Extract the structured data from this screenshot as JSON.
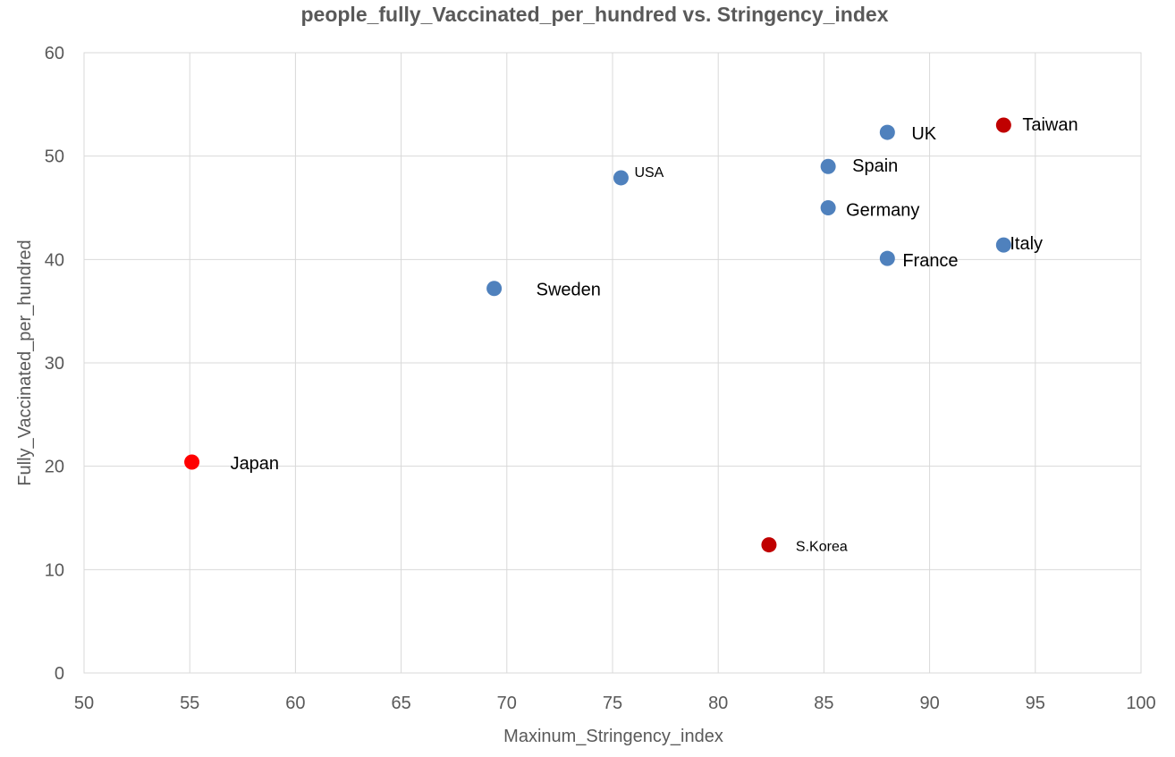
{
  "chart_data": {
    "type": "scatter",
    "title": "people_fully_Vaccinated_per_hundred vs. Stringency_index",
    "xlabel": "Maxinum_Stringency_index",
    "ylabel": "Fully_Vaccinated_per_hundred",
    "xlim": [
      50,
      100
    ],
    "ylim": [
      0,
      60
    ],
    "xticks": [
      "50",
      "55",
      "60",
      "65",
      "70",
      "75",
      "80",
      "85",
      "90",
      "95",
      "100"
    ],
    "yticks": [
      "0",
      "10",
      "20",
      "30",
      "40",
      "50",
      "60"
    ],
    "grid": true,
    "legend": "none",
    "colors": {
      "blue": "#4f81bd",
      "red": "#ff0000",
      "darkred": "#c00000"
    },
    "points": [
      {
        "label": "UK",
        "x": 88.0,
        "y": 52.3,
        "color": "#4f81bd",
        "label_size": "large"
      },
      {
        "label": "Taiwan",
        "x": 93.5,
        "y": 53.0,
        "color": "#c00000",
        "label_size": "large"
      },
      {
        "label": "USA",
        "x": 75.4,
        "y": 47.9,
        "color": "#4f81bd",
        "label_size": "small"
      },
      {
        "label": "Spain",
        "x": 85.2,
        "y": 49.0,
        "color": "#4f81bd",
        "label_size": "large"
      },
      {
        "label": "Germany",
        "x": 85.2,
        "y": 45.0,
        "color": "#4f81bd",
        "label_size": "large"
      },
      {
        "label": "Italy",
        "x": 93.5,
        "y": 41.4,
        "color": "#4f81bd",
        "label_size": "large"
      },
      {
        "label": "France",
        "x": 88.0,
        "y": 40.1,
        "color": "#4f81bd",
        "label_size": "large"
      },
      {
        "label": "Sweden",
        "x": 69.4,
        "y": 37.2,
        "color": "#4f81bd",
        "label_size": "large"
      },
      {
        "label": "Japan",
        "x": 55.1,
        "y": 20.4,
        "color": "#ff0000",
        "label_size": "large"
      },
      {
        "label": "S.Korea",
        "x": 82.4,
        "y": 12.4,
        "color": "#c00000",
        "label_size": "small"
      }
    ]
  }
}
